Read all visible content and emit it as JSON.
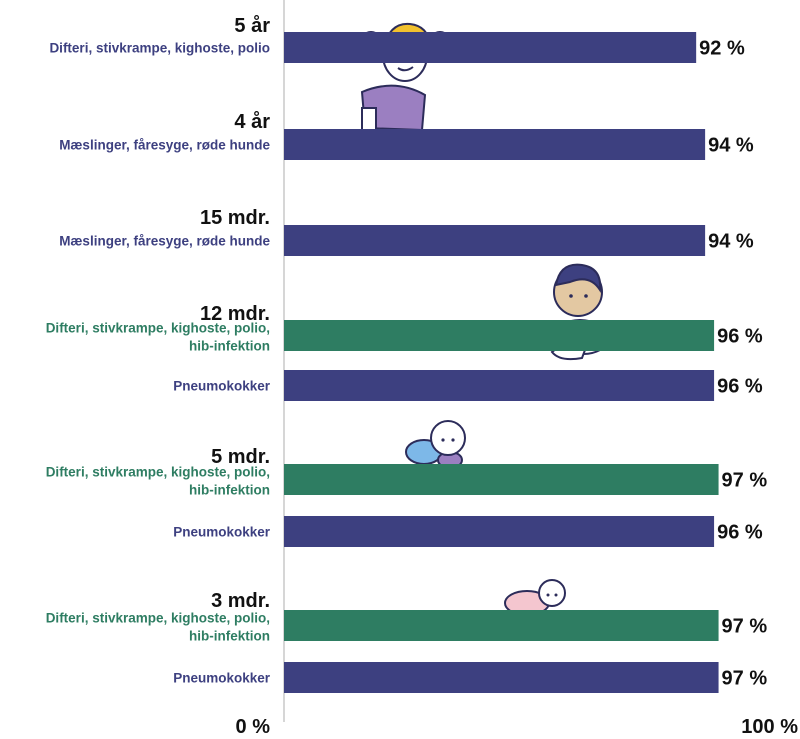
{
  "chart_data": {
    "type": "bar",
    "orientation": "horizontal",
    "xlim": [
      0,
      100
    ],
    "axis": {
      "min_label": "0 %",
      "max_label": "100 %"
    },
    "colors": {
      "navy": "#3d4080",
      "green": "#2e7d62"
    },
    "groups": [
      {
        "age": "5 år",
        "bars": [
          {
            "label": "Difteri, stivkrampe, kighoste, polio",
            "value": 92,
            "value_label": "92 %",
            "color": "navy"
          }
        ]
      },
      {
        "age": "4 år",
        "bars": [
          {
            "label": "Mæslinger, fåresyge, røde hunde",
            "value": 94,
            "value_label": "94 %",
            "color": "navy"
          }
        ]
      },
      {
        "age": "15 mdr.",
        "bars": [
          {
            "label": "Mæslinger, fåresyge, røde hunde",
            "value": 94,
            "value_label": "94 %",
            "color": "navy"
          }
        ]
      },
      {
        "age": "12 mdr.",
        "bars": [
          {
            "label": "Difteri, stivkrampe, kighoste, polio, hib-infektion",
            "value": 96,
            "value_label": "96 %",
            "color": "green"
          },
          {
            "label": "Pneumokokker",
            "value": 96,
            "value_label": "96 %",
            "color": "navy"
          }
        ]
      },
      {
        "age": "5 mdr.",
        "bars": [
          {
            "label": "Difteri, stivkrampe, kighoste, polio, hib-infektion",
            "value": 97,
            "value_label": "97 %",
            "color": "green"
          },
          {
            "label": "Pneumokokker",
            "value": 96,
            "value_label": "96 %",
            "color": "navy"
          }
        ]
      },
      {
        "age": "3 mdr.",
        "bars": [
          {
            "label": "Difteri, stivkrampe, kighoste, polio, hib-infektion",
            "value": 97,
            "value_label": "97 %",
            "color": "green"
          },
          {
            "label": "Pneumokokker",
            "value": 97,
            "value_label": "97 %",
            "color": "navy"
          }
        ]
      }
    ],
    "illustrations": [
      "girl-illustration-icon",
      "toddler-illustration-icon",
      "crawling-baby-illustration-icon",
      "newborn-illustration-icon"
    ]
  }
}
